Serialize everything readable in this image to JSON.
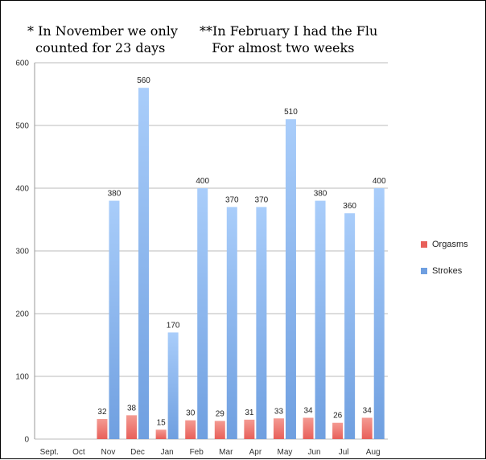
{
  "notes": {
    "left": "* In November we only\n  counted for 23 days",
    "right": "**In February I had the Flu\n   For almost two weeks"
  },
  "colors": {
    "orgasms": "#e8605a",
    "strokes": "#6f9fe0",
    "grid": "#bbbbbb"
  },
  "chart_data": {
    "type": "bar",
    "categories": [
      "Sept.",
      "Oct",
      "Nov",
      "Dec",
      "Jan",
      "Feb",
      "Mar",
      "Apr",
      "May",
      "Jun",
      "Jul",
      "Aug"
    ],
    "series": [
      {
        "name": "Orgasms",
        "values": [
          null,
          null,
          32,
          38,
          15,
          30,
          29,
          31,
          33,
          34,
          26,
          34
        ]
      },
      {
        "name": "Strokes",
        "values": [
          null,
          null,
          380,
          560,
          170,
          400,
          370,
          370,
          510,
          380,
          360,
          400
        ]
      }
    ],
    "ylim": [
      0,
      600
    ],
    "yticks": [
      0,
      100,
      200,
      300,
      400,
      500,
      600
    ],
    "grid": true,
    "legend": "right"
  }
}
